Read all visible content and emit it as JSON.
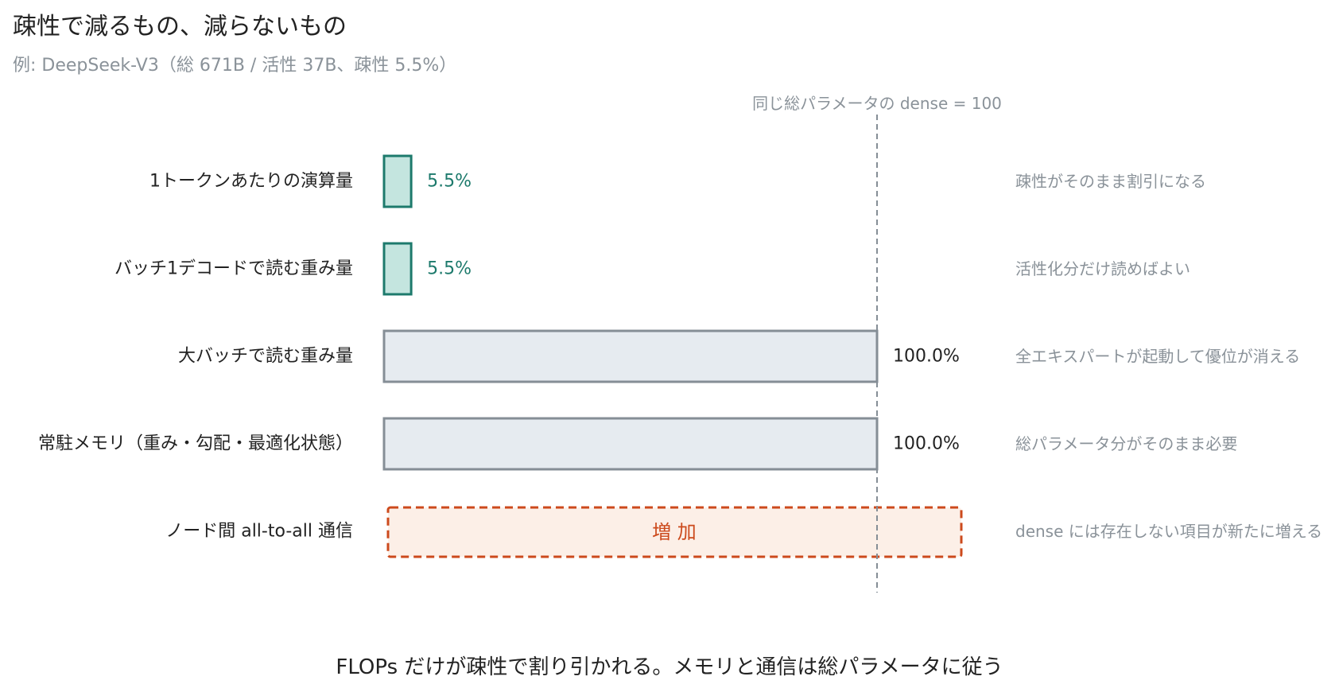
{
  "title": "疎性で減るもの、減らないもの",
  "subtitle": "例: DeepSeek-V3（総 671B / 活性 37B、疎性 5.5%）",
  "caption": "FLOPs だけが疎性で割り引かれる。メモリと通信は総パラメータに従う",
  "chart_data": {
    "type": "bar",
    "orientation": "horizontal",
    "reference": {
      "value": 100,
      "label": "同じ総パラメータの dense = 100"
    },
    "xlim": [
      0,
      100
    ],
    "grid": false,
    "categories": [
      "1トークンあたりの演算量",
      "バッチ1デコードで読む重み量",
      "大バッチで読む重み量",
      "常駐メモリ（重み・勾配・最適化状態）",
      "ノード間 all-to-all 通信"
    ],
    "values": [
      5.5,
      5.5,
      100.0,
      100.0,
      null
    ],
    "value_labels": [
      "5.5%",
      "5.5%",
      "100.0%",
      "100.0%",
      "増 加"
    ],
    "annotations": [
      "疎性がそのまま割引になる",
      "活性化分だけ読めばよい",
      "全エキスパートが起動して優位が消える",
      "総パラメータ分がそのまま必要",
      "dense には存在しない項目が新たに増える"
    ],
    "bar_styles": [
      "reduced",
      "reduced",
      "unchanged",
      "unchanged",
      "increased"
    ],
    "colors": {
      "reduced_fill": "#c4e5df",
      "reduced_stroke": "#1d7a6c",
      "reduced_text": "#1d7a6c",
      "unchanged_fill": "#e6ebf0",
      "unchanged_stroke": "#858e96",
      "unchanged_text": "#222222",
      "increased_fill": "#fcefe7",
      "increased_stroke": "#cc4a1c",
      "increased_text": "#cc4a1c",
      "reference_line": "#858e96",
      "annotation_text": "#8a9299",
      "category_text": "#222222"
    }
  }
}
